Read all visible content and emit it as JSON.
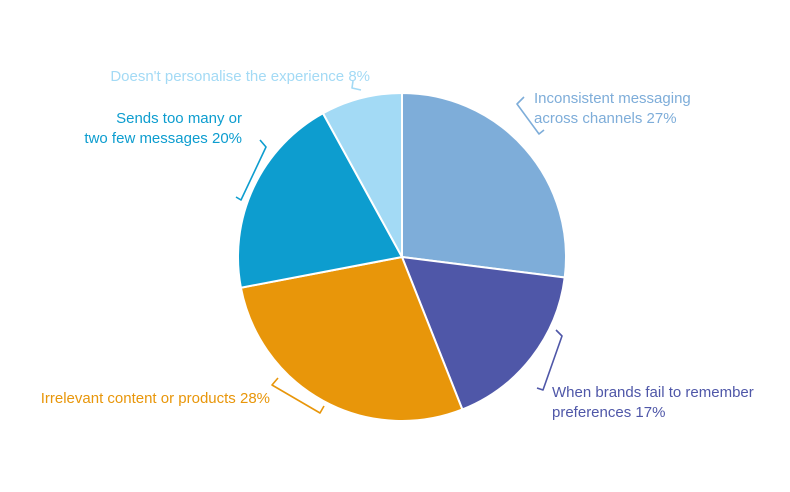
{
  "chart_data": {
    "type": "pie",
    "slices": [
      {
        "label_lines": [
          "Inconsistent messaging",
          "across channels 27%"
        ],
        "value": 27,
        "color": "#7eadd9"
      },
      {
        "label_lines": [
          "When brands fail to remember",
          "preferences 17%"
        ],
        "value": 17,
        "color": "#4f57a8"
      },
      {
        "label_lines": [
          "Irrelevant content or products 28%"
        ],
        "value": 28,
        "color": "#e8960a"
      },
      {
        "label_lines": [
          "Sends too many or",
          "two few messages 20%"
        ],
        "value": 20,
        "color": "#0d9dcf"
      },
      {
        "label_lines": [
          "Doesn't personalise the experience 8%"
        ],
        "value": 8,
        "color": "#a3daf5"
      }
    ]
  }
}
